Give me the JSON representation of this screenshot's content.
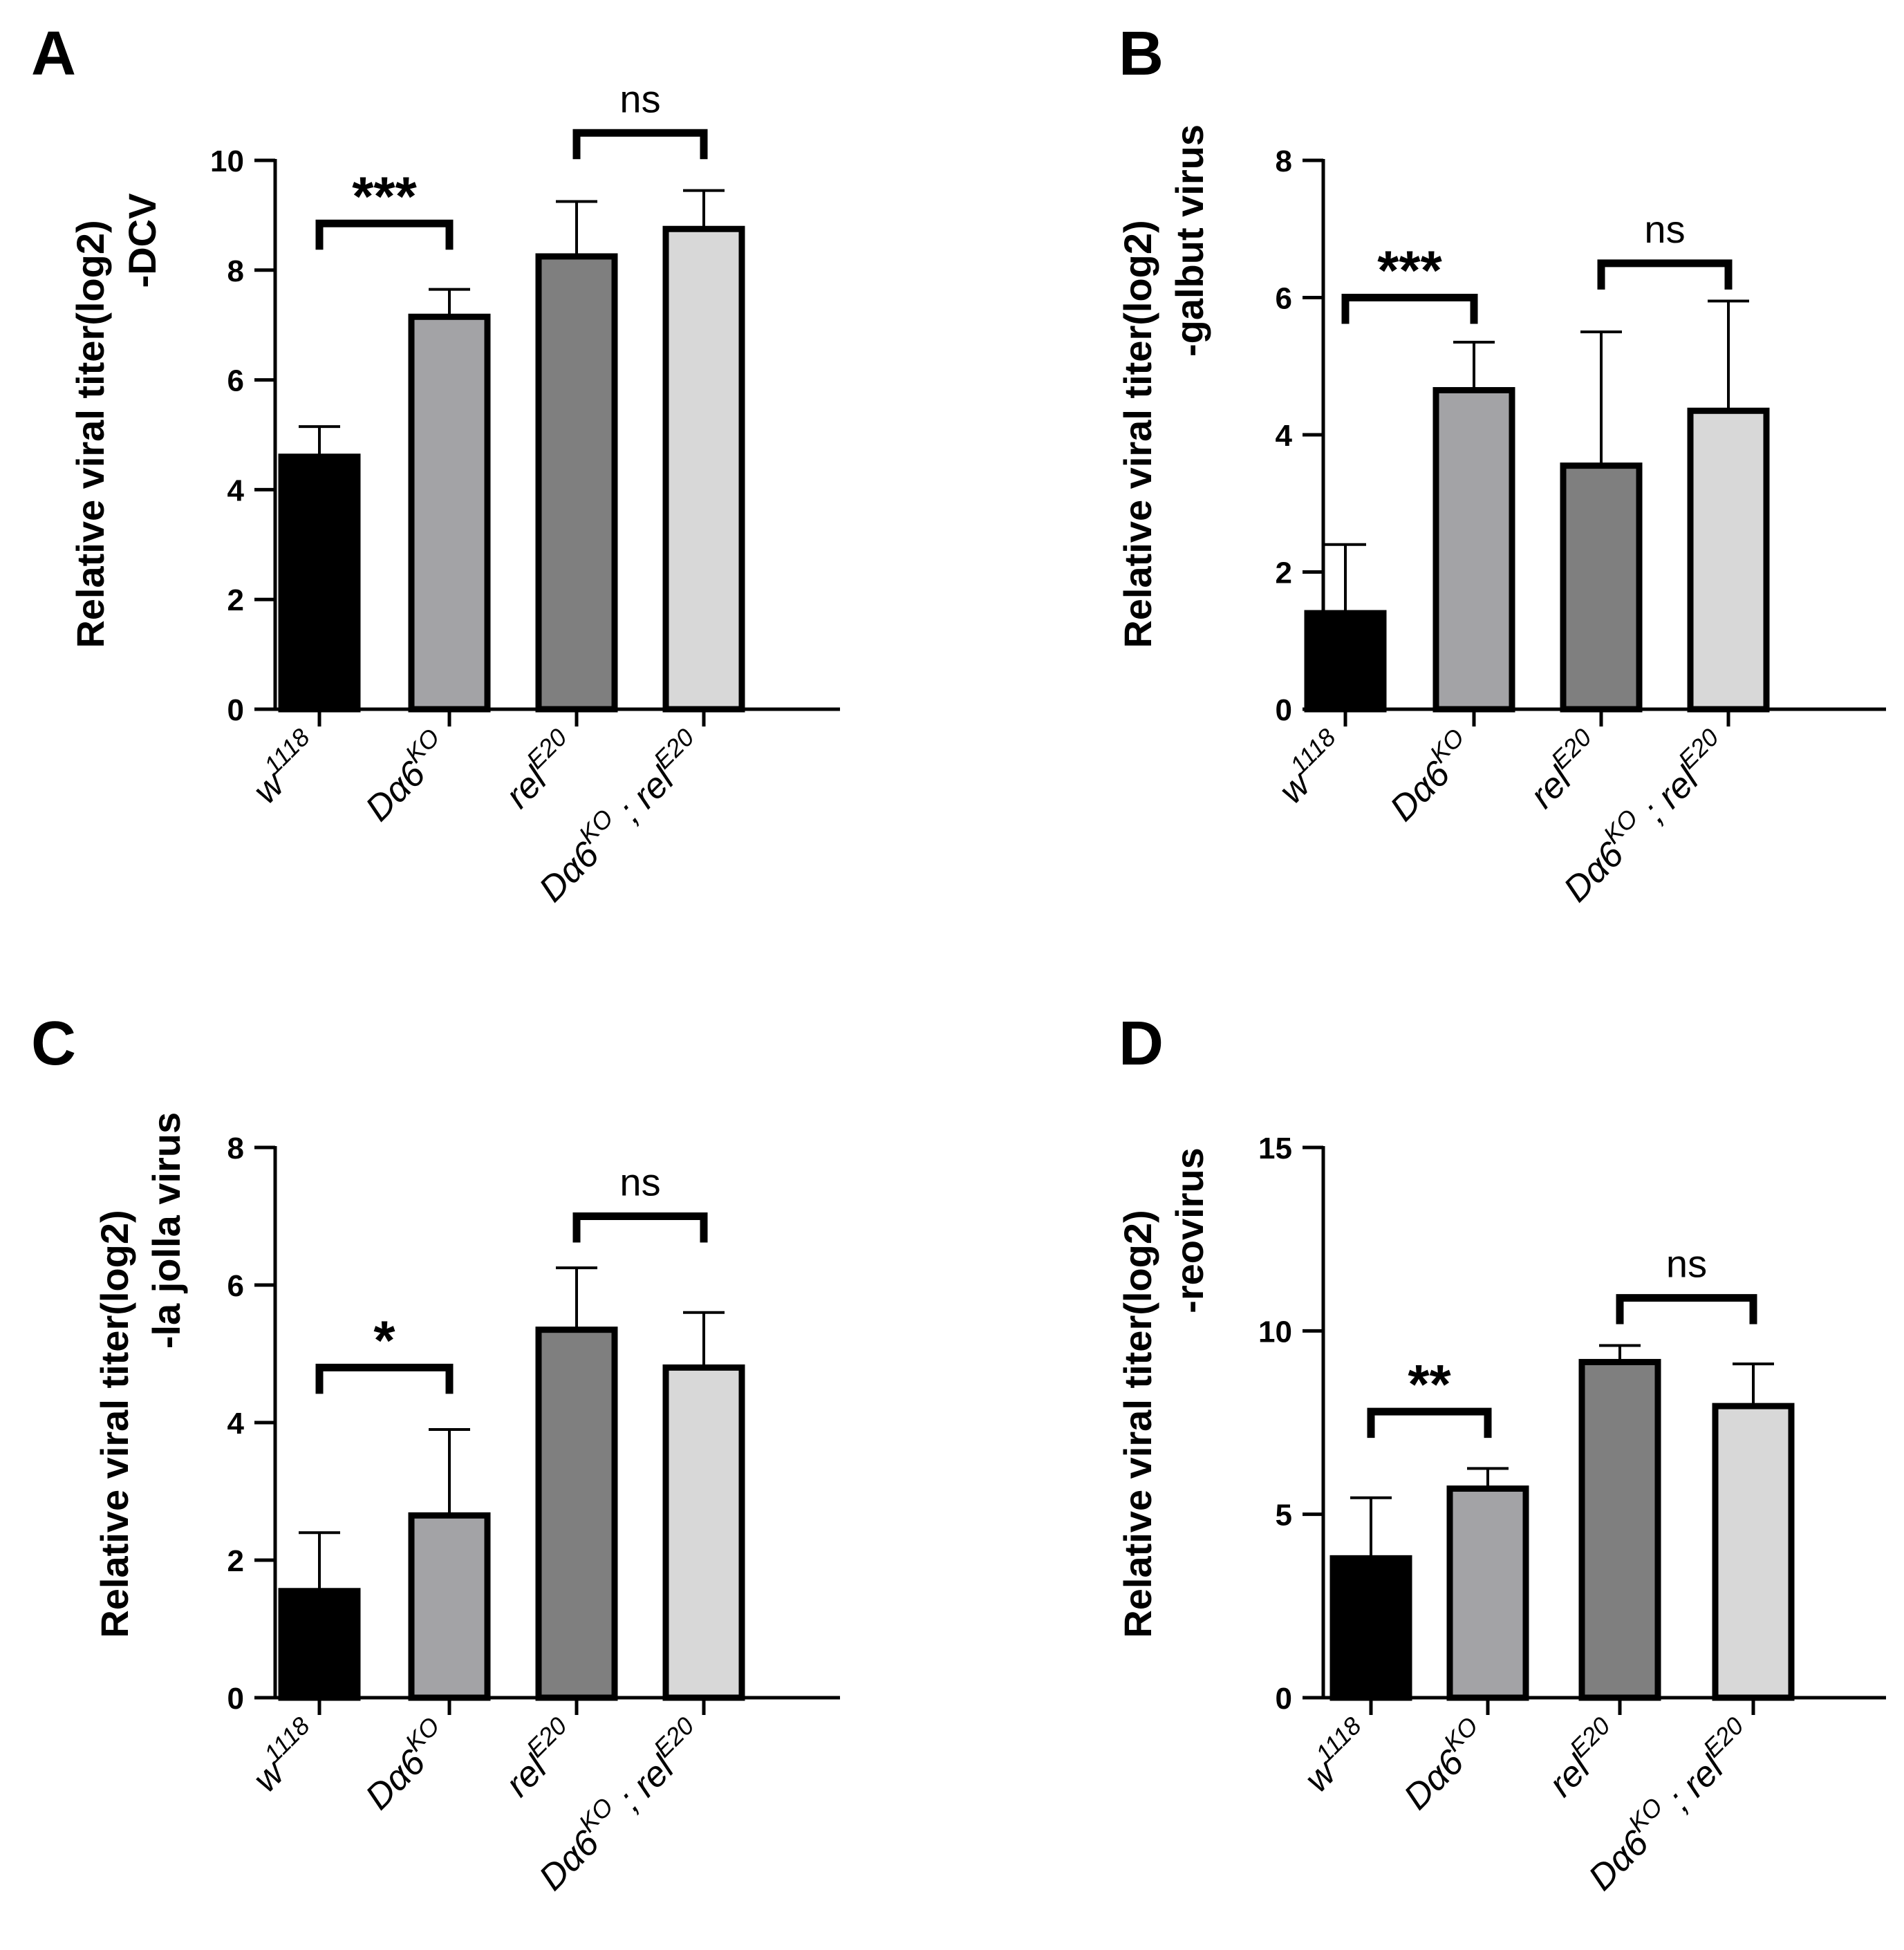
{
  "figure": {
    "colors": {
      "w1118": "#000000",
      "Da6KO": "#a3a3a6",
      "relE20": "#7f7f7f",
      "double": "#d8d8d8",
      "axis": "#000000"
    }
  },
  "chart_data": [
    {
      "panel": "A",
      "type": "bar",
      "ylabel_line1": "Relative viral titer(log2)",
      "ylabel_line2": "-DCV",
      "ylim": [
        0,
        10
      ],
      "yticks": [
        "0",
        "2",
        "4",
        "6",
        "8",
        "10"
      ],
      "categories": [
        {
          "base": "w",
          "sup": "1118"
        },
        {
          "base": "Dα6",
          "sup": "KO"
        },
        {
          "base": "rel",
          "sup": "E20"
        },
        {
          "base": "Dα6",
          "sup": "KO",
          "mid": " ; rel",
          "sup2": "E20"
        }
      ],
      "values": [
        4.6,
        7.15,
        8.25,
        8.75
      ],
      "errors": [
        0.55,
        0.5,
        1.0,
        0.7
      ],
      "significance": [
        {
          "pair": [
            0,
            1
          ],
          "label": "***",
          "level": 8.85
        },
        {
          "pair": [
            2,
            3
          ],
          "label": "ns",
          "level": 10.5
        }
      ]
    },
    {
      "panel": "B",
      "type": "bar",
      "ylabel_line1": "Relative viral titer(log2)",
      "ylabel_line2": "-galbut virus",
      "ylim": [
        0,
        8
      ],
      "yticks": [
        "0",
        "2",
        "4",
        "6",
        "8"
      ],
      "categories": [
        {
          "base": "w",
          "sup": "1118"
        },
        {
          "base": "Dα6",
          "sup": "KO"
        },
        {
          "base": "rel",
          "sup": "E20"
        },
        {
          "base": "Dα6",
          "sup": "KO",
          "mid": " ; rel",
          "sup2": "E20"
        }
      ],
      "values": [
        1.4,
        4.65,
        3.55,
        4.35
      ],
      "errors": [
        1.0,
        0.7,
        1.95,
        1.6
      ],
      "significance": [
        {
          "pair": [
            0,
            1
          ],
          "label": "***",
          "level": 6.0
        },
        {
          "pair": [
            2,
            3
          ],
          "label": "ns",
          "level": 6.5
        }
      ]
    },
    {
      "panel": "C",
      "type": "bar",
      "ylabel_line1": "Relative viral titer(log2)",
      "ylabel_line2": "-la jolla virus",
      "ylim": [
        0,
        8
      ],
      "yticks": [
        "0",
        "2",
        "4",
        "6",
        "8"
      ],
      "categories": [
        {
          "base": "w",
          "sup": "1118"
        },
        {
          "base": "Dα6",
          "sup": "KO"
        },
        {
          "base": "rel",
          "sup": "E20"
        },
        {
          "base": "Dα6",
          "sup": "KO",
          "mid": " ; rel",
          "sup2": "E20"
        }
      ],
      "values": [
        1.55,
        2.65,
        5.35,
        4.8
      ],
      "errors": [
        0.85,
        1.25,
        0.9,
        0.8
      ],
      "significance": [
        {
          "pair": [
            0,
            1
          ],
          "label": "*",
          "level": 4.8
        },
        {
          "pair": [
            2,
            3
          ],
          "label": "ns",
          "level": 7.0
        }
      ]
    },
    {
      "panel": "D",
      "type": "bar",
      "ylabel_line1": "Relative viral titer(log2)",
      "ylabel_line2": "-reovirus",
      "ylim": [
        0,
        15
      ],
      "yticks": [
        "0",
        "5",
        "10",
        "15"
      ],
      "categories": [
        {
          "base": "w",
          "sup": "1118"
        },
        {
          "base": "Dα6",
          "sup": "KO"
        },
        {
          "base": "rel",
          "sup": "E20"
        },
        {
          "base": "Dα6",
          "sup": "KO",
          "mid": " ; rel",
          "sup2": "E20"
        }
      ],
      "values": [
        3.8,
        5.7,
        9.15,
        7.95
      ],
      "errors": [
        1.65,
        0.55,
        0.45,
        1.15
      ],
      "significance": [
        {
          "pair": [
            0,
            1
          ],
          "label": "**",
          "level": 7.8
        },
        {
          "pair": [
            2,
            3
          ],
          "label": "ns",
          "level": 10.9
        }
      ]
    }
  ]
}
